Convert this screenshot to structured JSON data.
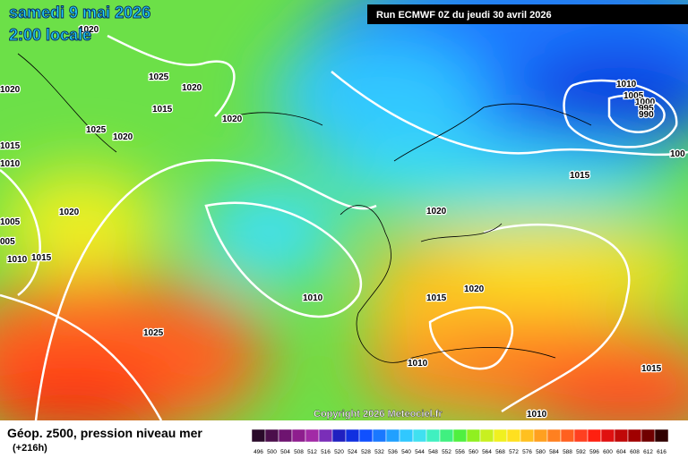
{
  "header": {
    "date": "samedi 9 mai 2026",
    "time": "2:00 locale",
    "run": "Run ECMWF 0Z du jeudi 30 avril 2026"
  },
  "copyright": "Copyright 2026 Meteociel.fr",
  "footer": {
    "title": "Géop. z500, pression niveau mer",
    "lead": "(+216h)"
  },
  "isobar_labels": [
    "1020",
    "1020",
    "1025",
    "1020",
    "1015",
    "1020",
    "1025",
    "1020",
    "1015",
    "1010",
    "1020",
    "1005",
    "005",
    "1010",
    "1015",
    "1010",
    "1025",
    "1020",
    "1015",
    "1020",
    "1010",
    "1010",
    "1015",
    "1015",
    "1010",
    "1005",
    "1000",
    "995",
    "990",
    "100"
  ],
  "colorbar": {
    "labels": [
      496,
      500,
      504,
      508,
      512,
      516,
      520,
      524,
      528,
      532,
      536,
      540,
      544,
      548,
      552,
      556,
      560,
      564,
      568,
      572,
      576,
      580,
      584,
      588,
      592,
      596,
      600,
      604,
      608,
      612,
      616
    ],
    "colors": [
      "#2a0a2a",
      "#4b0f4b",
      "#6e1470",
      "#8e1e8e",
      "#a22aa6",
      "#7a2eb8",
      "#2020c0",
      "#1030e0",
      "#1050ff",
      "#1a78ff",
      "#20a0ff",
      "#30c8ff",
      "#40e0f0",
      "#40f0c0",
      "#40f080",
      "#50f040",
      "#90f020",
      "#c8f020",
      "#f0f020",
      "#ffe020",
      "#ffc020",
      "#ffa020",
      "#ff8020",
      "#ff6020",
      "#ff4020",
      "#ff2010",
      "#e01010",
      "#c00808",
      "#a00000",
      "#700000",
      "#300000"
    ]
  }
}
